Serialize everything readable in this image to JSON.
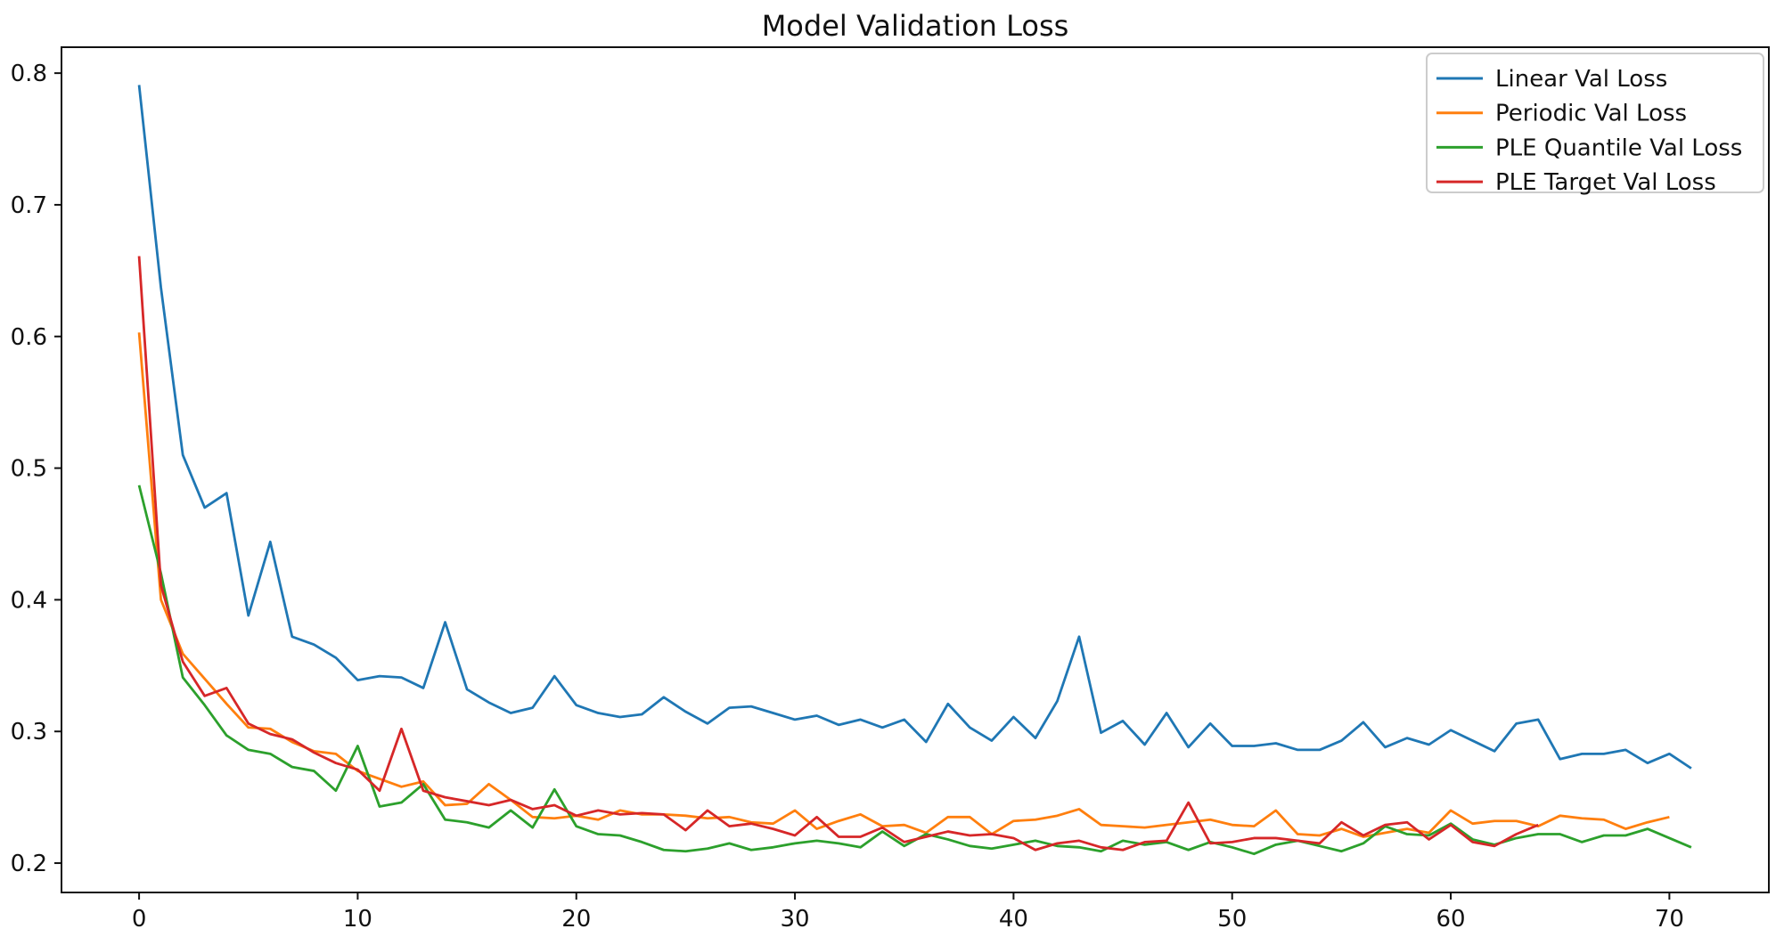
{
  "chart_data": {
    "type": "line",
    "title": "Model Validation Loss",
    "xlabel": "",
    "ylabel": "",
    "grid": false,
    "legend_position": "upper right",
    "background_color": "#ffffff",
    "axis_color": "#111111",
    "legend_border_color": "#cccccc",
    "xlim": [
      -3.55,
      74.55
    ],
    "ylim": [
      0.1777,
      0.8197
    ],
    "xticks": [
      0,
      10,
      20,
      30,
      40,
      50,
      60,
      70
    ],
    "xtick_labels": [
      "0",
      "10",
      "20",
      "30",
      "40",
      "50",
      "60",
      "70"
    ],
    "yticks": [
      0.2,
      0.3,
      0.4,
      0.5,
      0.6,
      0.7,
      0.8
    ],
    "ytick_labels": [
      "0.2",
      "0.3",
      "0.4",
      "0.5",
      "0.6",
      "0.7",
      "0.8"
    ],
    "series": [
      {
        "name": "Linear Val Loss",
        "color": "#1f77b4",
        "x_start": 0,
        "values": [
          0.791,
          0.637,
          0.51,
          0.47,
          0.481,
          0.388,
          0.444,
          0.372,
          0.366,
          0.356,
          0.339,
          0.342,
          0.341,
          0.333,
          0.383,
          0.332,
          0.322,
          0.314,
          0.318,
          0.342,
          0.32,
          0.314,
          0.311,
          0.313,
          0.326,
          0.315,
          0.306,
          0.318,
          0.319,
          0.314,
          0.309,
          0.312,
          0.305,
          0.309,
          0.303,
          0.309,
          0.292,
          0.321,
          0.303,
          0.293,
          0.311,
          0.295,
          0.323,
          0.372,
          0.299,
          0.308,
          0.29,
          0.314,
          0.288,
          0.306,
          0.289,
          0.289,
          0.291,
          0.286,
          0.286,
          0.293,
          0.307,
          0.288,
          0.295,
          0.29,
          0.301,
          0.293,
          0.285,
          0.306,
          0.309,
          0.279,
          0.283,
          0.283,
          0.286,
          0.276,
          0.283,
          0.272
        ]
      },
      {
        "name": "Periodic Val Loss",
        "color": "#ff7f0e",
        "x_start": 0,
        "values": [
          0.603,
          0.4,
          0.359,
          0.34,
          0.321,
          0.303,
          0.302,
          0.292,
          0.285,
          0.283,
          0.27,
          0.264,
          0.258,
          0.262,
          0.244,
          0.245,
          0.26,
          0.248,
          0.235,
          0.234,
          0.236,
          0.233,
          0.24,
          0.237,
          0.237,
          0.236,
          0.234,
          0.235,
          0.231,
          0.23,
          0.24,
          0.226,
          0.232,
          0.237,
          0.228,
          0.229,
          0.223,
          0.235,
          0.235,
          0.222,
          0.232,
          0.233,
          0.236,
          0.241,
          0.229,
          0.228,
          0.227,
          0.229,
          0.231,
          0.233,
          0.229,
          0.228,
          0.24,
          0.222,
          0.221,
          0.226,
          0.22,
          0.223,
          0.226,
          0.223,
          0.24,
          0.23,
          0.232,
          0.232,
          0.228,
          0.236,
          0.234,
          0.233,
          0.226,
          0.231,
          0.235
        ]
      },
      {
        "name": "PLE Quantile Val Loss",
        "color": "#2ca02c",
        "x_start": 0,
        "values": [
          0.487,
          0.42,
          0.341,
          0.32,
          0.297,
          0.286,
          0.283,
          0.273,
          0.27,
          0.255,
          0.289,
          0.243,
          0.246,
          0.26,
          0.233,
          0.231,
          0.227,
          0.24,
          0.227,
          0.256,
          0.228,
          0.222,
          0.221,
          0.216,
          0.21,
          0.209,
          0.211,
          0.215,
          0.21,
          0.212,
          0.215,
          0.217,
          0.215,
          0.212,
          0.224,
          0.213,
          0.222,
          0.218,
          0.213,
          0.211,
          0.214,
          0.217,
          0.213,
          0.212,
          0.209,
          0.217,
          0.214,
          0.216,
          0.21,
          0.216,
          0.212,
          0.207,
          0.214,
          0.217,
          0.213,
          0.209,
          0.215,
          0.228,
          0.222,
          0.221,
          0.23,
          0.218,
          0.214,
          0.219,
          0.222,
          0.222,
          0.216,
          0.221,
          0.221,
          0.226,
          0.219,
          0.212
        ]
      },
      {
        "name": "PLE Target Val Loss",
        "color": "#d62728",
        "x_start": 0,
        "values": [
          0.661,
          0.411,
          0.353,
          0.327,
          0.333,
          0.306,
          0.298,
          0.294,
          0.284,
          0.276,
          0.271,
          0.255,
          0.302,
          0.255,
          0.25,
          0.247,
          0.244,
          0.248,
          0.241,
          0.244,
          0.236,
          0.24,
          0.237,
          0.238,
          0.237,
          0.225,
          0.24,
          0.228,
          0.23,
          0.226,
          0.221,
          0.235,
          0.22,
          0.22,
          0.227,
          0.216,
          0.22,
          0.224,
          0.221,
          0.222,
          0.219,
          0.21,
          0.215,
          0.217,
          0.212,
          0.21,
          0.216,
          0.217,
          0.246,
          0.215,
          0.216,
          0.219,
          0.219,
          0.217,
          0.215,
          0.231,
          0.221,
          0.229,
          0.231,
          0.218,
          0.229,
          0.216,
          0.213,
          0.222,
          0.229
        ]
      }
    ]
  }
}
